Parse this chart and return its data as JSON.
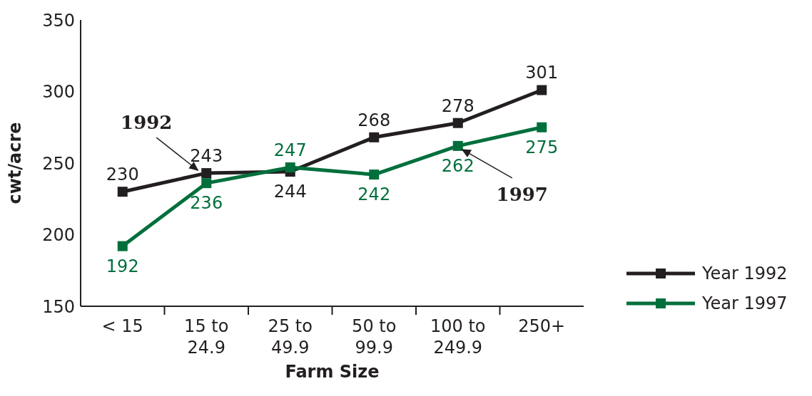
{
  "chart_data": {
    "type": "line",
    "xlabel": "Farm Size",
    "ylabel": "cwt/acre",
    "categories": [
      "< 15",
      "15 to\n24.9",
      "25 to\n49.9",
      "50 to\n99.9",
      "100 to\n249.9",
      "250+"
    ],
    "series": [
      {
        "name": "Year 1992",
        "color": "#231f20",
        "values": [
          230,
          243,
          244,
          268,
          278,
          301
        ]
      },
      {
        "name": "Year 1997",
        "color": "#006f3c",
        "values": [
          192,
          236,
          247,
          242,
          262,
          275
        ]
      }
    ],
    "ylim": [
      150,
      350
    ],
    "yticks": [
      150,
      200,
      250,
      300,
      350
    ],
    "grid": false,
    "legend": "right",
    "marker": "square",
    "line_style": "solid",
    "data_labels": true,
    "annotations": [
      {
        "text": "1992",
        "x": "15 to\n24.9",
        "y": 243
      },
      {
        "text": "1997",
        "x": "100 to\n249.9",
        "y": 262
      }
    ]
  }
}
